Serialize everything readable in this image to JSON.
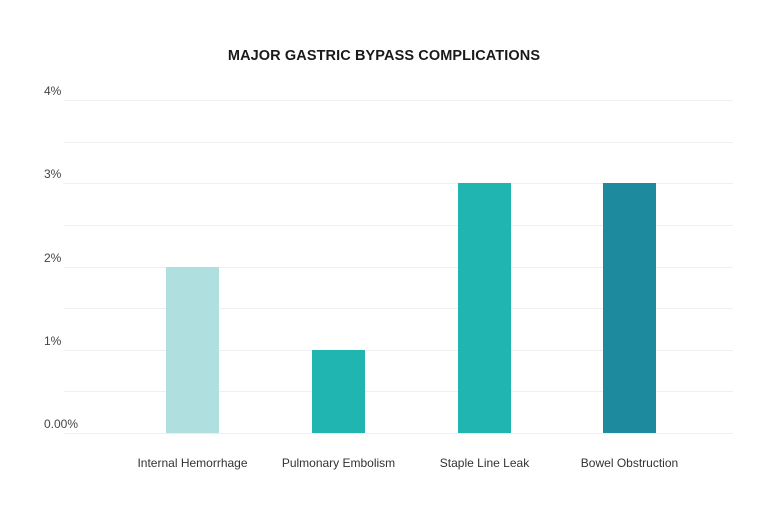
{
  "chart_data": {
    "type": "bar",
    "title": "MAJOR GASTRIC BYPASS COMPLICATIONS",
    "xlabel": "",
    "ylabel": "",
    "categories": [
      "Internal Hemorrhage",
      "Pulmonary Embolism",
      "Staple Line Leak",
      "Bowel Obstruction"
    ],
    "values": [
      2,
      1,
      3,
      3
    ],
    "unit": "%",
    "ylim": [
      0,
      4
    ],
    "yticks": [
      "0.00%",
      "1%",
      "2%",
      "3%",
      "4%"
    ],
    "grid": true,
    "legend": null,
    "bar_colors": [
      "#b0dfdf",
      "#20b5b0",
      "#20b5b0",
      "#1e8a9d"
    ]
  }
}
